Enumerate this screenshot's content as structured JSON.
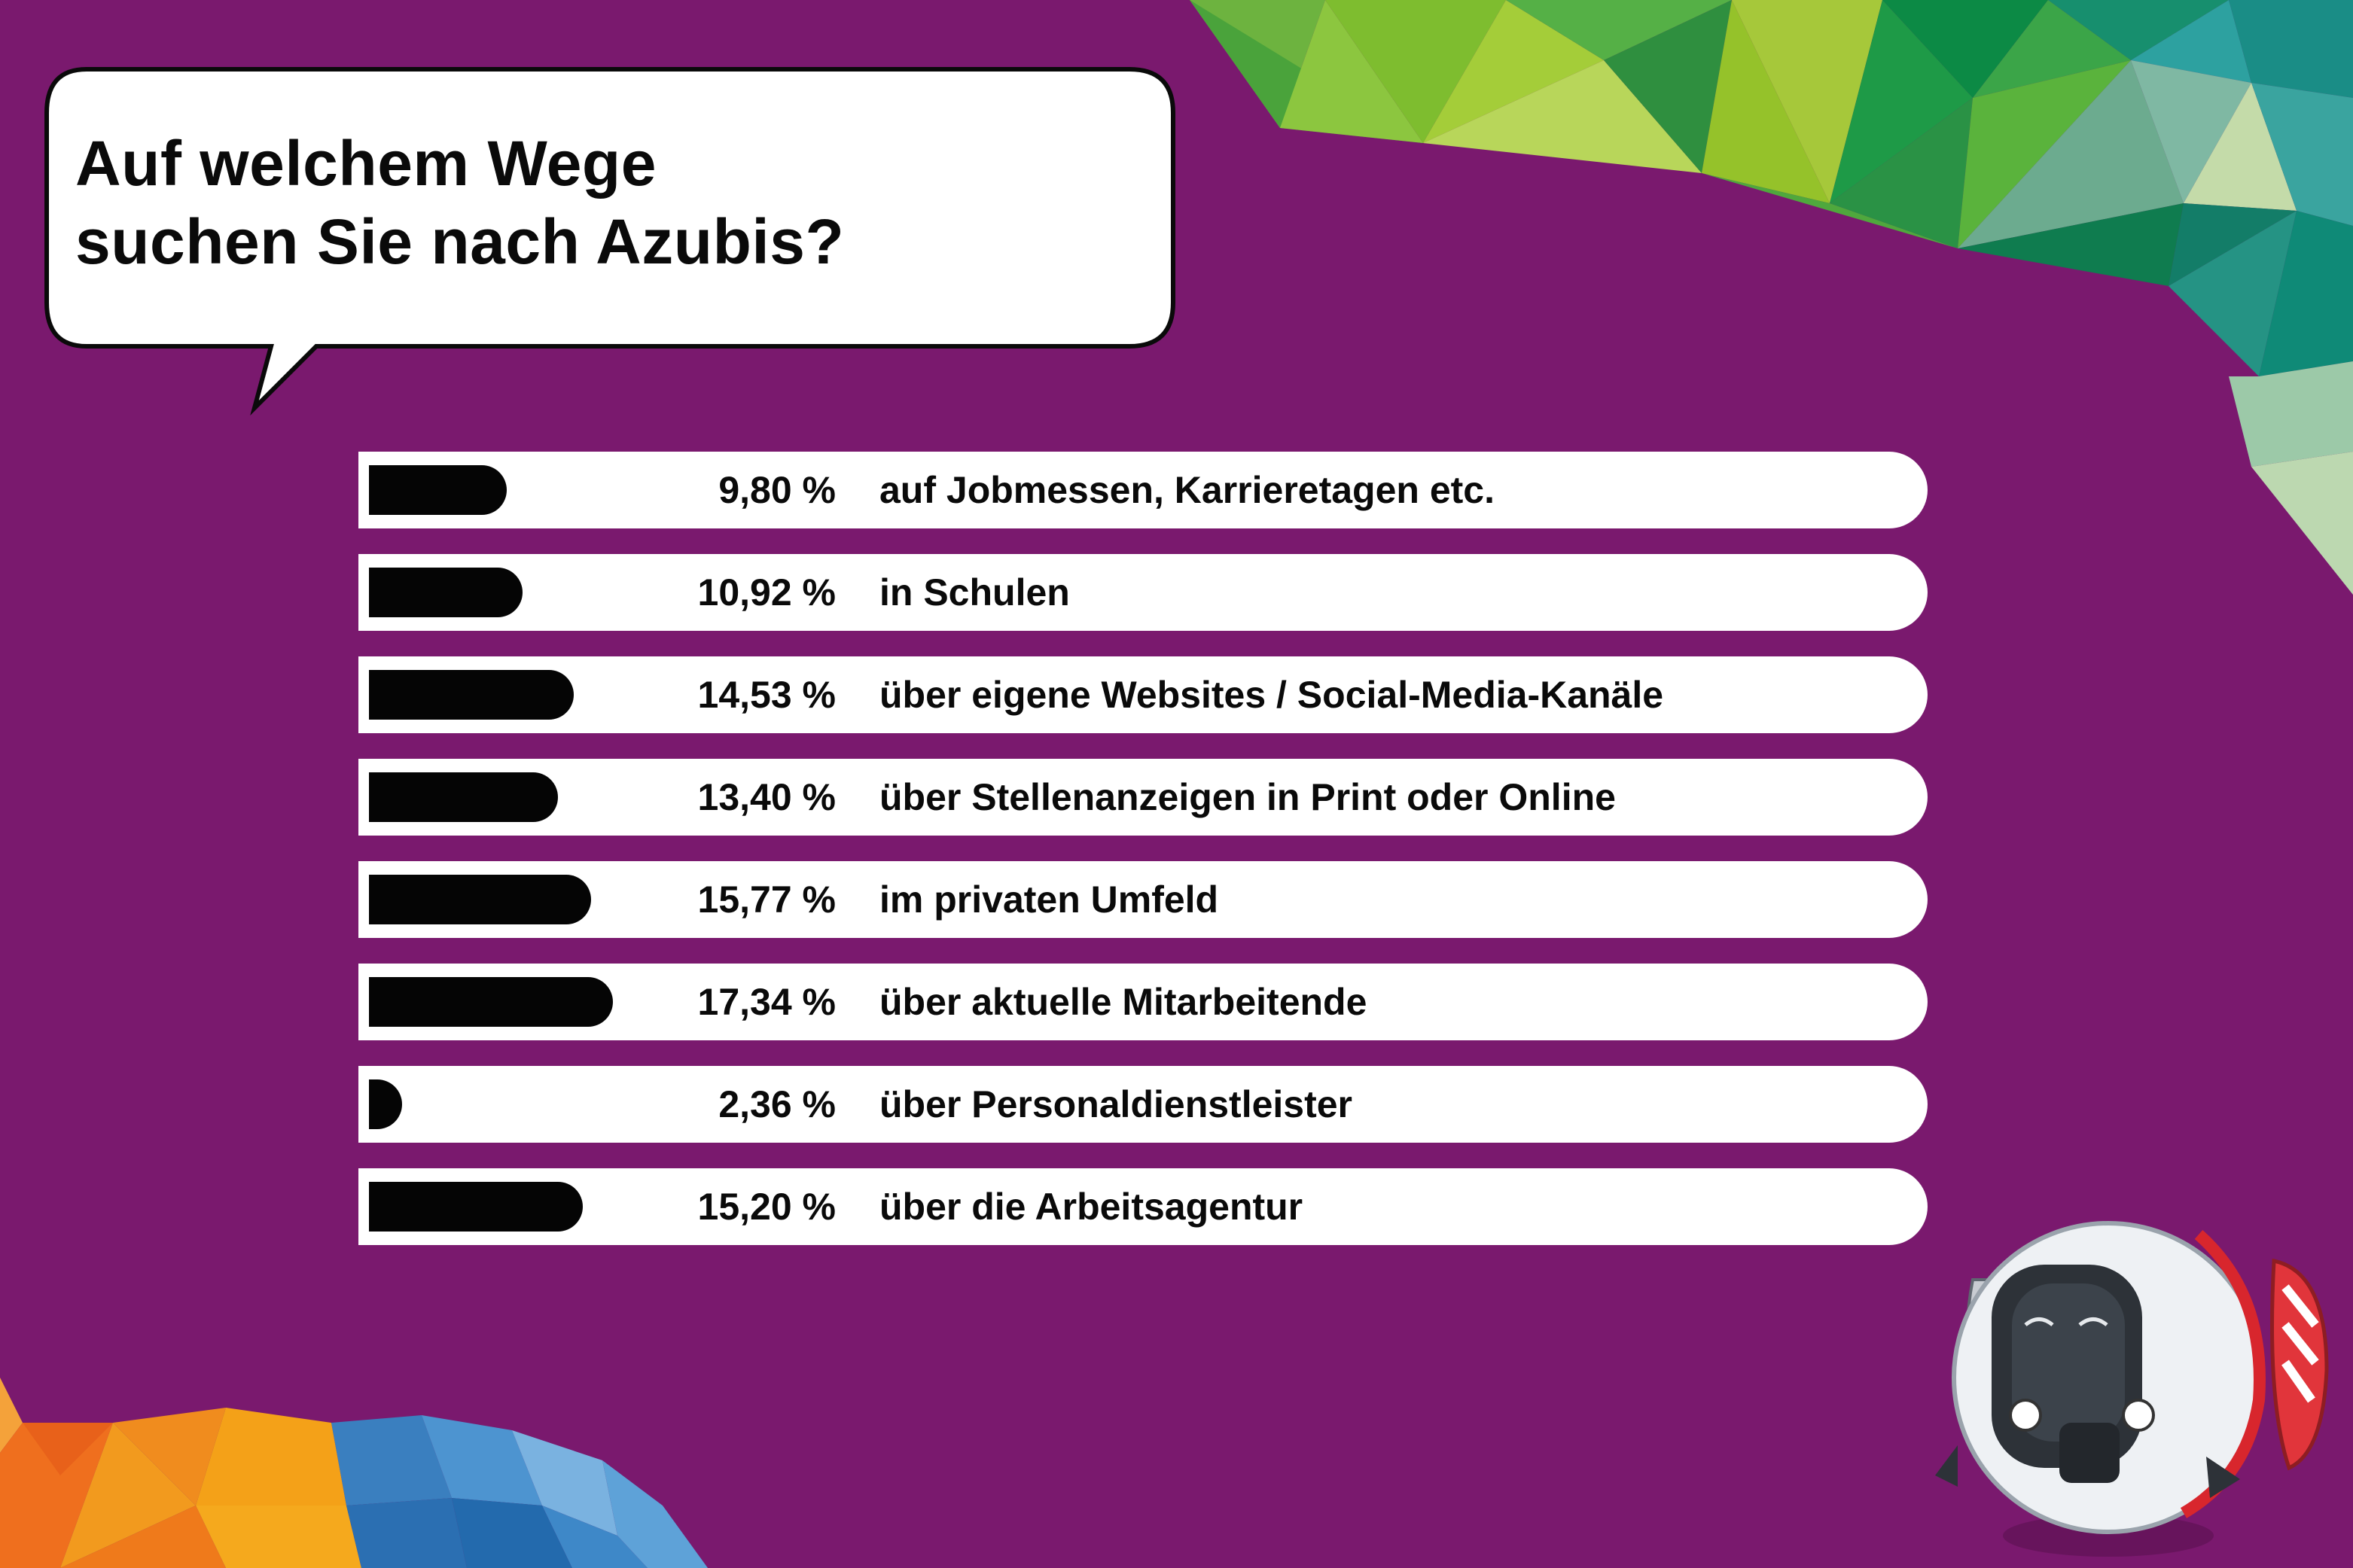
{
  "colors": {
    "background": "#7a196e",
    "row_background": "#ffffff",
    "bar": "#050505",
    "text": "#0a0a0a"
  },
  "icons": [
    "speech-bubble-icon",
    "robot-mascot-icon"
  ],
  "chart_data": {
    "type": "bar",
    "orientation": "horizontal",
    "title": "Auf welchem Wege suchen Sie nach Azubis?",
    "title_lines": [
      "Auf welchem Wege",
      "suchen Sie nach Azubis?"
    ],
    "unit": "%",
    "xlim": [
      0,
      100
    ],
    "grid": false,
    "legend": "none",
    "categories": [
      "auf Jobmessen, Karrieretagen etc.",
      "in Schulen",
      "über eigene Websites / Social-Media-Kanäle",
      "über Stellenanzeigen in Print oder Online",
      "im privaten Umfeld",
      "über aktuelle Mitarbeitende",
      "über Personaldienstleister",
      "über die Arbeitsagentur"
    ],
    "values": [
      9.8,
      10.92,
      14.53,
      13.4,
      15.77,
      17.34,
      2.36,
      15.2
    ],
    "value_labels": [
      "9,80 %",
      "10,92 %",
      "14,53 %",
      "13,40 %",
      "15,77 %",
      "17,34 %",
      "2,36 %",
      "15,20 %"
    ]
  }
}
